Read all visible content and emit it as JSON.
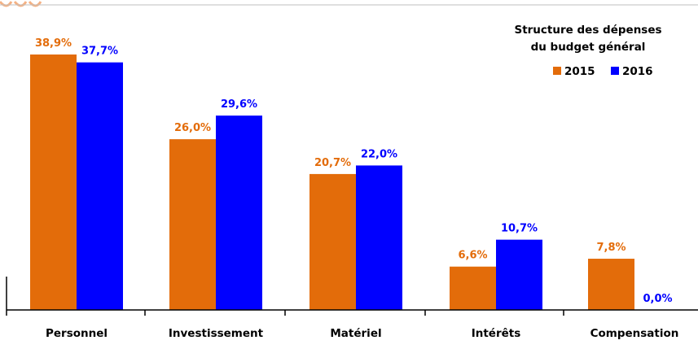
{
  "chart_data": {
    "type": "bar",
    "title": "Structure des dépenses\ndu budget général",
    "categories": [
      "Personnel",
      "Investissement",
      "Matériel",
      "Intérêts",
      "Compensation"
    ],
    "series": [
      {
        "name": "2015",
        "color": "#E36C0A",
        "values": [
          38.9,
          26.0,
          20.7,
          6.6,
          7.8
        ],
        "labels": [
          "38,9%",
          "26,0%",
          "20,7%",
          "6,6%",
          "7,8%"
        ]
      },
      {
        "name": "2016",
        "color": "#0000FF",
        "values": [
          37.7,
          29.6,
          22.0,
          10.7,
          0.0
        ],
        "labels": [
          "37,7%",
          "29,6%",
          "22,0%",
          "10,7%",
          "0,0%"
        ]
      }
    ],
    "ylim": [
      0,
      40
    ],
    "ylabel": "",
    "xlabel": "",
    "grid": false,
    "legend_position": "top-right"
  }
}
